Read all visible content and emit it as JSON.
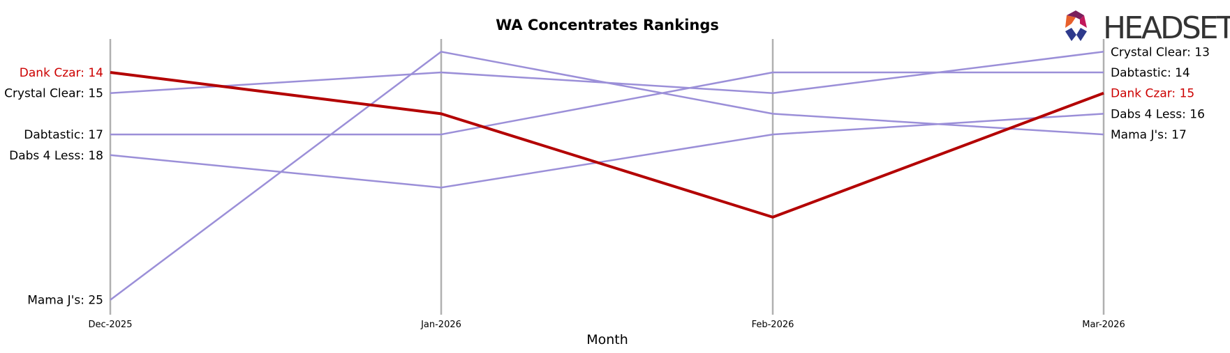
{
  "logo": {
    "text": "HEADSET",
    "colors": [
      "#e8602c",
      "#c8102e",
      "#7a1f5c",
      "#c2185b",
      "#2e3a8c"
    ]
  },
  "chart_data": {
    "type": "line",
    "title": "WA Concentrates Rankings",
    "xlabel": "Month",
    "ylabel": "",
    "categories": [
      "Dec-2025",
      "Jan-2026",
      "Feb-2026",
      "Mar-2026"
    ],
    "ylim": [
      26,
      12.5
    ],
    "y_inverted": true,
    "grid": "vertical lines at each month",
    "highlight_color": "#b30000",
    "series_color": "#9b8fd8",
    "series": [
      {
        "name": "Dank Czar",
        "values": [
          14,
          16,
          21,
          15
        ],
        "highlight": true
      },
      {
        "name": "Crystal Clear",
        "values": [
          15,
          14,
          15,
          13
        ],
        "highlight": false
      },
      {
        "name": "Dabtastic",
        "values": [
          17,
          17,
          14,
          14
        ],
        "highlight": false
      },
      {
        "name": "Dabs 4 Less",
        "values": [
          18,
          19.57,
          17,
          16
        ],
        "highlight": false
      },
      {
        "name": "Mama J's",
        "values": [
          25,
          13,
          16,
          17
        ],
        "highlight": false
      }
    ],
    "start_labels": [
      {
        "series": "Dank Czar",
        "text": "Dank Czar: 14"
      },
      {
        "series": "Crystal Clear",
        "text": "Crystal Clear: 15"
      },
      {
        "series": "Dabtastic",
        "text": "Dabtastic: 17"
      },
      {
        "series": "Dabs 4 Less",
        "text": "Dabs 4 Less: 18"
      },
      {
        "series": "Mama J's",
        "text": "Mama J's: 25"
      }
    ],
    "end_labels": [
      {
        "series": "Crystal Clear",
        "text": "Crystal Clear: 13"
      },
      {
        "series": "Dabtastic",
        "text": "Dabtastic: 14"
      },
      {
        "series": "Dank Czar",
        "text": "Dank Czar: 15"
      },
      {
        "series": "Dabs 4 Less",
        "text": "Dabs 4 Less: 16"
      },
      {
        "series": "Mama J's",
        "text": "Mama J's: 17"
      }
    ]
  }
}
